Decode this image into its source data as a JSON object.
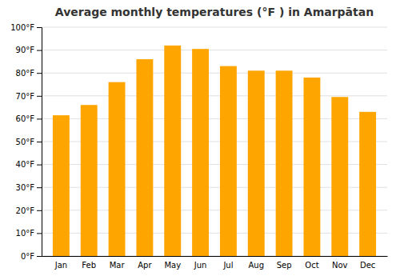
{
  "chart_data": {
    "type": "bar",
    "title": "Average monthly temperatures (°F ) in Amarpātan",
    "categories": [
      "Jan",
      "Feb",
      "Mar",
      "Apr",
      "May",
      "Jun",
      "Jul",
      "Aug",
      "Sep",
      "Oct",
      "Nov",
      "Dec"
    ],
    "values": [
      61.5,
      66.0,
      76.0,
      86.0,
      92.0,
      90.5,
      83.0,
      81.0,
      81.0,
      78.0,
      69.5,
      63.0
    ],
    "color": "#FFA500",
    "ylim": [
      0,
      100
    ],
    "yticks": [
      {
        "value": 0,
        "label": "0°F"
      },
      {
        "value": 10,
        "label": "10°F"
      },
      {
        "value": 20,
        "label": "20°F"
      },
      {
        "value": 30,
        "label": "30°F"
      },
      {
        "value": 40,
        "label": "40°F"
      },
      {
        "value": 50,
        "label": "50°F"
      },
      {
        "value": 60,
        "label": "60°F"
      },
      {
        "value": 70,
        "label": "70°F"
      },
      {
        "value": 80,
        "label": "80°F"
      },
      {
        "value": 90,
        "label": "90°F"
      },
      {
        "value": 100,
        "label": "100°F"
      }
    ],
    "grid": true
  }
}
